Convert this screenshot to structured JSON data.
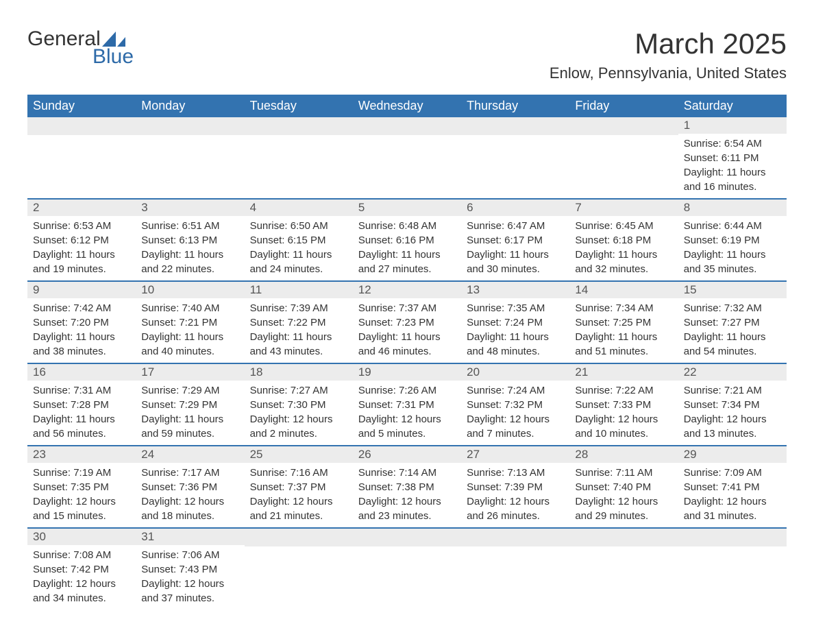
{
  "logo": {
    "text_main": "General",
    "text_sub": "Blue",
    "triangle_color": "#2d6aa8"
  },
  "title": {
    "month": "March 2025",
    "location": "Enlow, Pennsylvania, United States"
  },
  "colors": {
    "header_bg": "#3373b0",
    "header_text": "#ffffff",
    "daynum_bg": "#ececec",
    "daynum_text": "#555555",
    "body_text": "#333333",
    "row_border": "#3373b0"
  },
  "day_headers": [
    "Sunday",
    "Monday",
    "Tuesday",
    "Wednesday",
    "Thursday",
    "Friday",
    "Saturday"
  ],
  "weeks": [
    [
      {
        "day": "",
        "sunrise": "",
        "sunset": "",
        "daylight1": "",
        "daylight2": ""
      },
      {
        "day": "",
        "sunrise": "",
        "sunset": "",
        "daylight1": "",
        "daylight2": ""
      },
      {
        "day": "",
        "sunrise": "",
        "sunset": "",
        "daylight1": "",
        "daylight2": ""
      },
      {
        "day": "",
        "sunrise": "",
        "sunset": "",
        "daylight1": "",
        "daylight2": ""
      },
      {
        "day": "",
        "sunrise": "",
        "sunset": "",
        "daylight1": "",
        "daylight2": ""
      },
      {
        "day": "",
        "sunrise": "",
        "sunset": "",
        "daylight1": "",
        "daylight2": ""
      },
      {
        "day": "1",
        "sunrise": "Sunrise: 6:54 AM",
        "sunset": "Sunset: 6:11 PM",
        "daylight1": "Daylight: 11 hours",
        "daylight2": "and 16 minutes."
      }
    ],
    [
      {
        "day": "2",
        "sunrise": "Sunrise: 6:53 AM",
        "sunset": "Sunset: 6:12 PM",
        "daylight1": "Daylight: 11 hours",
        "daylight2": "and 19 minutes."
      },
      {
        "day": "3",
        "sunrise": "Sunrise: 6:51 AM",
        "sunset": "Sunset: 6:13 PM",
        "daylight1": "Daylight: 11 hours",
        "daylight2": "and 22 minutes."
      },
      {
        "day": "4",
        "sunrise": "Sunrise: 6:50 AM",
        "sunset": "Sunset: 6:15 PM",
        "daylight1": "Daylight: 11 hours",
        "daylight2": "and 24 minutes."
      },
      {
        "day": "5",
        "sunrise": "Sunrise: 6:48 AM",
        "sunset": "Sunset: 6:16 PM",
        "daylight1": "Daylight: 11 hours",
        "daylight2": "and 27 minutes."
      },
      {
        "day": "6",
        "sunrise": "Sunrise: 6:47 AM",
        "sunset": "Sunset: 6:17 PM",
        "daylight1": "Daylight: 11 hours",
        "daylight2": "and 30 minutes."
      },
      {
        "day": "7",
        "sunrise": "Sunrise: 6:45 AM",
        "sunset": "Sunset: 6:18 PM",
        "daylight1": "Daylight: 11 hours",
        "daylight2": "and 32 minutes."
      },
      {
        "day": "8",
        "sunrise": "Sunrise: 6:44 AM",
        "sunset": "Sunset: 6:19 PM",
        "daylight1": "Daylight: 11 hours",
        "daylight2": "and 35 minutes."
      }
    ],
    [
      {
        "day": "9",
        "sunrise": "Sunrise: 7:42 AM",
        "sunset": "Sunset: 7:20 PM",
        "daylight1": "Daylight: 11 hours",
        "daylight2": "and 38 minutes."
      },
      {
        "day": "10",
        "sunrise": "Sunrise: 7:40 AM",
        "sunset": "Sunset: 7:21 PM",
        "daylight1": "Daylight: 11 hours",
        "daylight2": "and 40 minutes."
      },
      {
        "day": "11",
        "sunrise": "Sunrise: 7:39 AM",
        "sunset": "Sunset: 7:22 PM",
        "daylight1": "Daylight: 11 hours",
        "daylight2": "and 43 minutes."
      },
      {
        "day": "12",
        "sunrise": "Sunrise: 7:37 AM",
        "sunset": "Sunset: 7:23 PM",
        "daylight1": "Daylight: 11 hours",
        "daylight2": "and 46 minutes."
      },
      {
        "day": "13",
        "sunrise": "Sunrise: 7:35 AM",
        "sunset": "Sunset: 7:24 PM",
        "daylight1": "Daylight: 11 hours",
        "daylight2": "and 48 minutes."
      },
      {
        "day": "14",
        "sunrise": "Sunrise: 7:34 AM",
        "sunset": "Sunset: 7:25 PM",
        "daylight1": "Daylight: 11 hours",
        "daylight2": "and 51 minutes."
      },
      {
        "day": "15",
        "sunrise": "Sunrise: 7:32 AM",
        "sunset": "Sunset: 7:27 PM",
        "daylight1": "Daylight: 11 hours",
        "daylight2": "and 54 minutes."
      }
    ],
    [
      {
        "day": "16",
        "sunrise": "Sunrise: 7:31 AM",
        "sunset": "Sunset: 7:28 PM",
        "daylight1": "Daylight: 11 hours",
        "daylight2": "and 56 minutes."
      },
      {
        "day": "17",
        "sunrise": "Sunrise: 7:29 AM",
        "sunset": "Sunset: 7:29 PM",
        "daylight1": "Daylight: 11 hours",
        "daylight2": "and 59 minutes."
      },
      {
        "day": "18",
        "sunrise": "Sunrise: 7:27 AM",
        "sunset": "Sunset: 7:30 PM",
        "daylight1": "Daylight: 12 hours",
        "daylight2": "and 2 minutes."
      },
      {
        "day": "19",
        "sunrise": "Sunrise: 7:26 AM",
        "sunset": "Sunset: 7:31 PM",
        "daylight1": "Daylight: 12 hours",
        "daylight2": "and 5 minutes."
      },
      {
        "day": "20",
        "sunrise": "Sunrise: 7:24 AM",
        "sunset": "Sunset: 7:32 PM",
        "daylight1": "Daylight: 12 hours",
        "daylight2": "and 7 minutes."
      },
      {
        "day": "21",
        "sunrise": "Sunrise: 7:22 AM",
        "sunset": "Sunset: 7:33 PM",
        "daylight1": "Daylight: 12 hours",
        "daylight2": "and 10 minutes."
      },
      {
        "day": "22",
        "sunrise": "Sunrise: 7:21 AM",
        "sunset": "Sunset: 7:34 PM",
        "daylight1": "Daylight: 12 hours",
        "daylight2": "and 13 minutes."
      }
    ],
    [
      {
        "day": "23",
        "sunrise": "Sunrise: 7:19 AM",
        "sunset": "Sunset: 7:35 PM",
        "daylight1": "Daylight: 12 hours",
        "daylight2": "and 15 minutes."
      },
      {
        "day": "24",
        "sunrise": "Sunrise: 7:17 AM",
        "sunset": "Sunset: 7:36 PM",
        "daylight1": "Daylight: 12 hours",
        "daylight2": "and 18 minutes."
      },
      {
        "day": "25",
        "sunrise": "Sunrise: 7:16 AM",
        "sunset": "Sunset: 7:37 PM",
        "daylight1": "Daylight: 12 hours",
        "daylight2": "and 21 minutes."
      },
      {
        "day": "26",
        "sunrise": "Sunrise: 7:14 AM",
        "sunset": "Sunset: 7:38 PM",
        "daylight1": "Daylight: 12 hours",
        "daylight2": "and 23 minutes."
      },
      {
        "day": "27",
        "sunrise": "Sunrise: 7:13 AM",
        "sunset": "Sunset: 7:39 PM",
        "daylight1": "Daylight: 12 hours",
        "daylight2": "and 26 minutes."
      },
      {
        "day": "28",
        "sunrise": "Sunrise: 7:11 AM",
        "sunset": "Sunset: 7:40 PM",
        "daylight1": "Daylight: 12 hours",
        "daylight2": "and 29 minutes."
      },
      {
        "day": "29",
        "sunrise": "Sunrise: 7:09 AM",
        "sunset": "Sunset: 7:41 PM",
        "daylight1": "Daylight: 12 hours",
        "daylight2": "and 31 minutes."
      }
    ],
    [
      {
        "day": "30",
        "sunrise": "Sunrise: 7:08 AM",
        "sunset": "Sunset: 7:42 PM",
        "daylight1": "Daylight: 12 hours",
        "daylight2": "and 34 minutes."
      },
      {
        "day": "31",
        "sunrise": "Sunrise: 7:06 AM",
        "sunset": "Sunset: 7:43 PM",
        "daylight1": "Daylight: 12 hours",
        "daylight2": "and 37 minutes."
      },
      {
        "day": "",
        "sunrise": "",
        "sunset": "",
        "daylight1": "",
        "daylight2": ""
      },
      {
        "day": "",
        "sunrise": "",
        "sunset": "",
        "daylight1": "",
        "daylight2": ""
      },
      {
        "day": "",
        "sunrise": "",
        "sunset": "",
        "daylight1": "",
        "daylight2": ""
      },
      {
        "day": "",
        "sunrise": "",
        "sunset": "",
        "daylight1": "",
        "daylight2": ""
      },
      {
        "day": "",
        "sunrise": "",
        "sunset": "",
        "daylight1": "",
        "daylight2": ""
      }
    ]
  ]
}
